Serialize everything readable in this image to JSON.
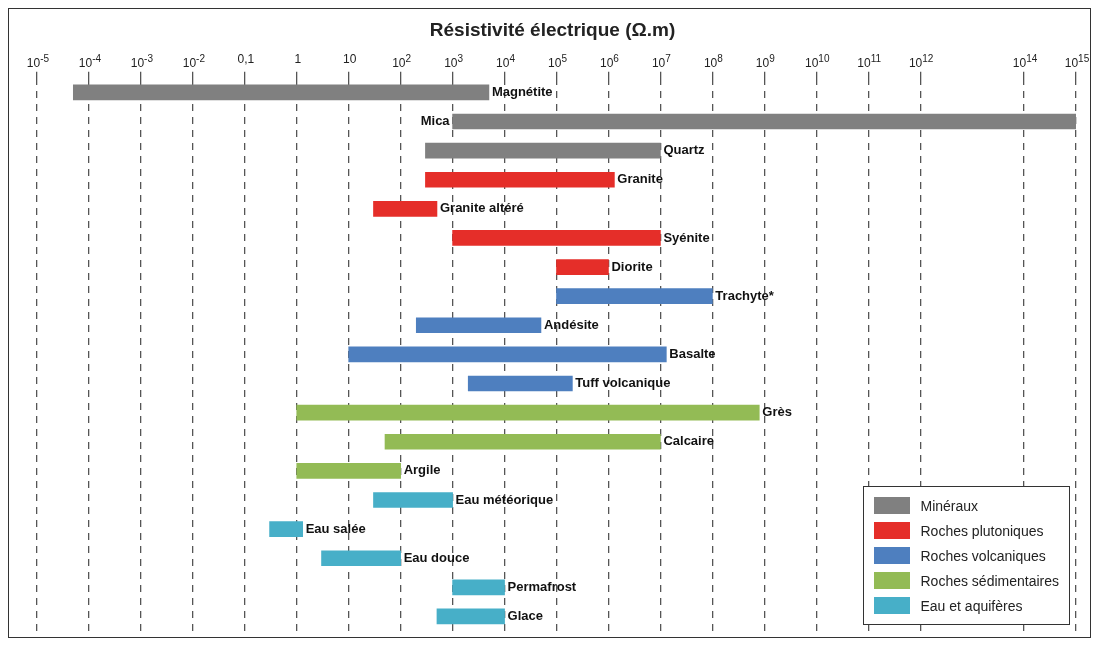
{
  "chart_data": {
    "type": "bar",
    "orientation": "horizontal",
    "title": "Résistivité électrique (Ω.m)",
    "categories": [
      "Magnétite",
      "Mica",
      "Quartz",
      "Granite",
      "Granite altéré",
      "Syénite",
      "Diorite",
      "Trachyte*",
      "Andésite",
      "Basalte",
      "Tuff volcanique",
      "Grès",
      "Calcaire",
      "Argile",
      "Eau météorique",
      "Eau salée",
      "Eau douce",
      "Permafrost",
      "Glace"
    ],
    "series": [
      {
        "name": "Minéraux",
        "color": "#808080",
        "base": [
          5e-05,
          1000,
          300,
          null,
          null,
          null,
          null,
          null,
          null,
          null,
          null,
          null,
          null,
          null,
          null,
          null,
          null,
          null,
          null
        ],
        "values": [
          5000,
          1000000000000000.0,
          10000000.0,
          null,
          null,
          null,
          null,
          null,
          null,
          null,
          null,
          null,
          null,
          null,
          null,
          null,
          null,
          null,
          null
        ]
      },
      {
        "name": "Roches plutoniques",
        "color": "#e52e29",
        "base": [
          null,
          null,
          null,
          300,
          30,
          1000,
          100000,
          null,
          null,
          null,
          null,
          null,
          null,
          null,
          null,
          null,
          null,
          null,
          null
        ],
        "values": [
          null,
          null,
          null,
          1300000,
          470,
          10000000.0,
          900000,
          null,
          null,
          null,
          null,
          null,
          null,
          null,
          null,
          null,
          null,
          null,
          null
        ]
      },
      {
        "name": "Roches volcaniques",
        "color": "#4e7fbf",
        "base": [
          null,
          null,
          null,
          null,
          null,
          null,
          null,
          100000,
          200,
          10,
          2000,
          null,
          null,
          null,
          null,
          null,
          null,
          null,
          null
        ],
        "values": [
          null,
          null,
          null,
          null,
          null,
          null,
          null,
          100000000.0,
          50000,
          13000000.0,
          200000,
          null,
          null,
          null,
          null,
          null,
          null,
          null,
          null
        ]
      },
      {
        "name": "Roches sédimentaires",
        "color": "#93bb55",
        "base": [
          null,
          null,
          null,
          null,
          null,
          null,
          null,
          null,
          null,
          null,
          null,
          1,
          50,
          1,
          null,
          null,
          null,
          null,
          null
        ],
        "values": [
          null,
          null,
          null,
          null,
          null,
          null,
          null,
          null,
          null,
          null,
          null,
          800000000.0,
          10000000.0,
          99,
          null,
          null,
          null,
          null,
          null
        ]
      },
      {
        "name": "Eau et aquifères",
        "color": "#47afc8",
        "base": [
          null,
          null,
          null,
          null,
          null,
          null,
          null,
          null,
          null,
          null,
          null,
          null,
          null,
          null,
          30,
          0.3,
          3,
          1000,
          500
        ],
        "values": [
          null,
          null,
          null,
          null,
          null,
          null,
          null,
          null,
          null,
          null,
          null,
          null,
          null,
          null,
          970,
          1,
          97,
          9000,
          9500
        ]
      }
    ],
    "log": "x",
    "xlim": [
      1e-05,
      1000000000000000.0
    ],
    "xticks": [
      {
        "value": 1e-05,
        "label": "10$^{-5}$"
      },
      {
        "value": 0.0001,
        "label": "10$^{-4}$"
      },
      {
        "value": 0.001,
        "label": "10$^{-3}$"
      },
      {
        "value": 0.01,
        "label": "10$^{-2}$"
      },
      {
        "value": 0.1,
        "label": "0,1"
      },
      1,
      10,
      {
        "value": 100,
        "label": "10$^{2}$"
      },
      {
        "value": 1000,
        "label": "10$^{3}$"
      },
      {
        "value": 10000.0,
        "label": "10$^{4}$"
      },
      {
        "value": 100000.0,
        "label": "10$^{5}$"
      },
      {
        "value": 1000000.0,
        "label": "10$^{6}$"
      },
      {
        "value": 10000000.0,
        "label": "10$^{7}$"
      },
      {
        "value": 100000000.0,
        "label": "10$^{8}$"
      },
      {
        "value": 1000000000.0,
        "label": "10$^{9}$"
      },
      {
        "value": 10000000000.0,
        "label": "10$^{10}$"
      },
      {
        "value": 100000000000.0,
        "label": "10$^{11}$"
      },
      {
        "value": 1000000000000.0,
        "label": "10$^{12}$"
      },
      {
        "value": 100000000000000.0,
        "label": "10$^{14}$"
      },
      {
        "value": 1000000000000000.0,
        "label": "10$^{15}$"
      }
    ],
    "grid": "x",
    "legend": "bottom right"
  }
}
